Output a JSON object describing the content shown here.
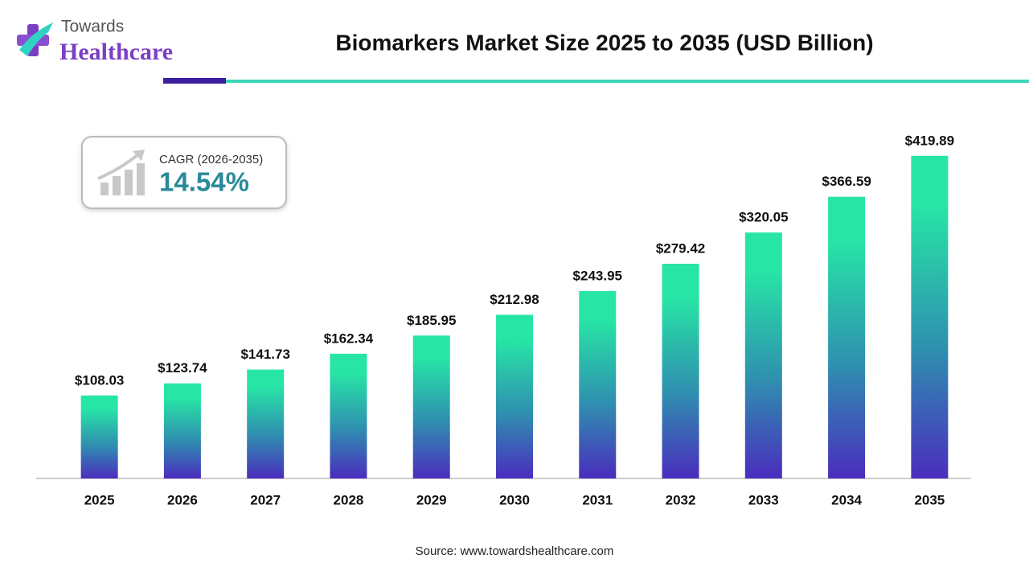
{
  "brand": {
    "top": "Towards",
    "bottom": "Healthcare"
  },
  "chart_data": {
    "type": "bar",
    "title": "Biomarkers Market Size 2025 to 2035 (USD Billion)",
    "categories": [
      "2025",
      "2026",
      "2027",
      "2028",
      "2029",
      "2030",
      "2031",
      "2032",
      "2033",
      "2034",
      "2035"
    ],
    "values": [
      108.03,
      123.74,
      141.73,
      162.34,
      185.95,
      212.98,
      243.95,
      279.42,
      320.05,
      366.59,
      419.89
    ],
    "value_labels": [
      "$108.03",
      "$123.74",
      "$141.73",
      "$162.34",
      "$185.95",
      "$212.98",
      "$243.95",
      "$279.42",
      "$320.05",
      "$366.59",
      "$419.89"
    ],
    "colors": [
      "#27e6a5",
      "#4a2dbd"
    ],
    "ylim": [
      0,
      450
    ],
    "annotations": {
      "cagr_label": "CAGR (2026-2035)",
      "cagr_value": "14.54%"
    },
    "source": "Source: www.towardshealthcare.com"
  }
}
